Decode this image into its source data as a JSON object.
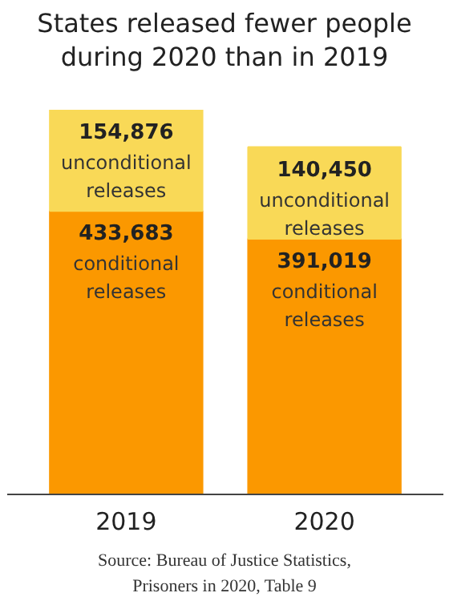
{
  "chart_data": {
    "type": "bar",
    "title": "States released fewer people during 2020 than in 2019",
    "categories": [
      "2019",
      "2020"
    ],
    "stacked": true,
    "grid": false,
    "series": [
      {
        "name": "conditional releases",
        "color": "#fb9800",
        "values": [
          433683,
          391019
        ],
        "value_labels": [
          "433,683",
          "391,019"
        ]
      },
      {
        "name": "unconditional releases",
        "color": "#f9d957",
        "values": [
          154876,
          140450
        ],
        "value_labels": [
          "154,876",
          "140,450"
        ]
      }
    ],
    "annotations": [
      "Source: Bureau of Justice Statistics, Prisoners in 2020, Table 9"
    ]
  }
}
